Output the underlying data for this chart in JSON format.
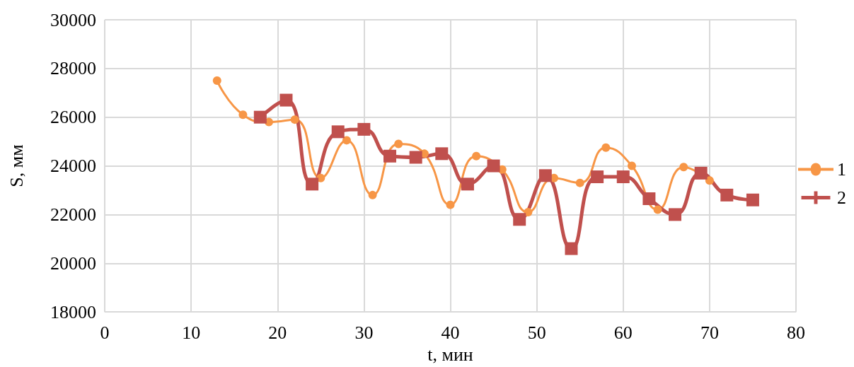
{
  "chart_data": {
    "type": "line",
    "xlabel": "t, мин",
    "ylabel": "S, мм",
    "xlim": [
      0,
      80
    ],
    "xticks": [
      0,
      10,
      20,
      30,
      40,
      50,
      60,
      70,
      80
    ],
    "ylim": [
      18000,
      30000
    ],
    "yticks": [
      18000,
      20000,
      22000,
      24000,
      26000,
      28000,
      30000
    ],
    "grid": true,
    "legend": "right",
    "series": [
      {
        "name": "1",
        "color": "#f79646",
        "marker": "circle",
        "x": [
          13,
          16,
          19,
          22,
          25,
          28,
          31,
          34,
          37,
          40,
          43,
          46,
          49,
          52,
          55,
          58,
          61,
          64,
          67,
          70
        ],
        "values": [
          27500,
          26100,
          25800,
          25900,
          23500,
          25050,
          22800,
          24900,
          24500,
          22400,
          24400,
          23850,
          22100,
          23500,
          23300,
          24750,
          24000,
          22200,
          23950,
          23400
        ]
      },
      {
        "name": "2",
        "color": "#c0504d",
        "marker": "square",
        "x": [
          18,
          21,
          24,
          27,
          30,
          33,
          36,
          39,
          42,
          45,
          48,
          51,
          54,
          57,
          60,
          63,
          66,
          69,
          72,
          75
        ],
        "values": [
          26000,
          26700,
          23250,
          25400,
          25500,
          24400,
          24350,
          24500,
          23250,
          24000,
          21800,
          23600,
          20600,
          23550,
          23550,
          22650,
          22000,
          23700,
          22800,
          22600
        ]
      }
    ]
  }
}
